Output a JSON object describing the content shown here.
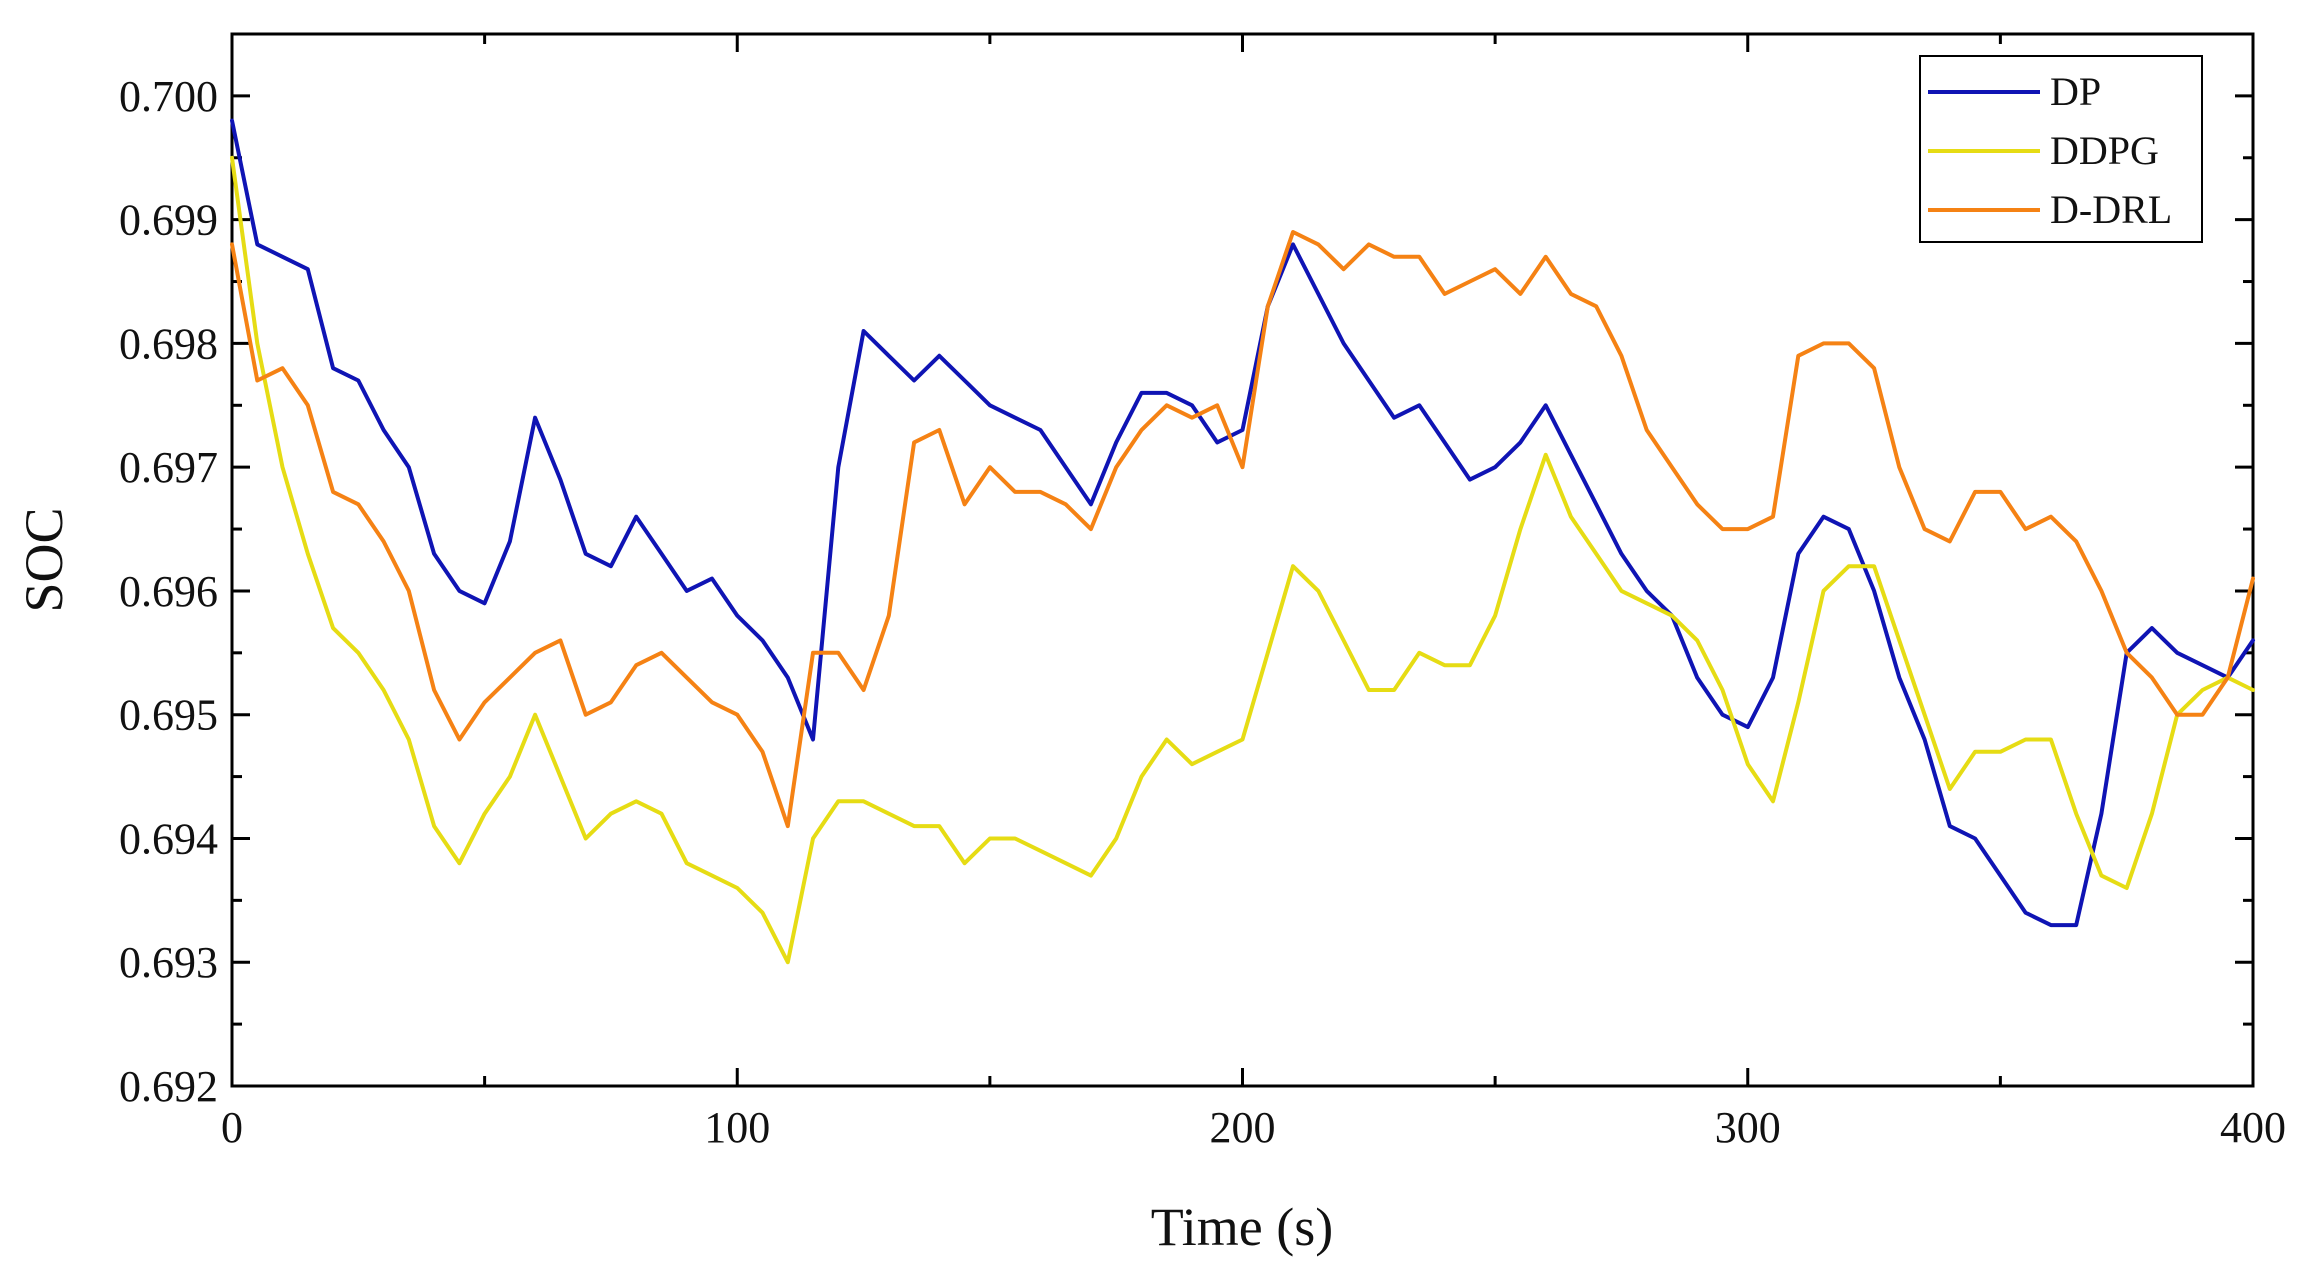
{
  "chart_data": {
    "type": "line",
    "title": "",
    "xlabel": "Time (s)",
    "ylabel": "SOC",
    "xlim": [
      0,
      400
    ],
    "ylim": [
      0.692,
      0.7005
    ],
    "xticks": [
      0,
      100,
      200,
      300,
      400
    ],
    "xtick_labels": [
      "0",
      "100",
      "200",
      "300",
      "400"
    ],
    "yticks": [
      0.692,
      0.693,
      0.694,
      0.695,
      0.696,
      0.697,
      0.698,
      0.699,
      0.7
    ],
    "ytick_labels": [
      "0.692",
      "0.693",
      "0.694",
      "0.695",
      "0.696",
      "0.697",
      "0.698",
      "0.699",
      "0.700"
    ],
    "grid": false,
    "legend_position": "top-right",
    "x": [
      0,
      5,
      10,
      15,
      20,
      25,
      30,
      35,
      40,
      45,
      50,
      55,
      60,
      65,
      70,
      75,
      80,
      85,
      90,
      95,
      100,
      105,
      110,
      115,
      120,
      125,
      130,
      135,
      140,
      145,
      150,
      155,
      160,
      165,
      170,
      175,
      180,
      185,
      190,
      195,
      200,
      205,
      210,
      215,
      220,
      225,
      230,
      235,
      240,
      245,
      250,
      255,
      260,
      265,
      270,
      275,
      280,
      285,
      290,
      295,
      300,
      305,
      310,
      315,
      320,
      325,
      330,
      335,
      340,
      345,
      350,
      355,
      360,
      365,
      370,
      375,
      380,
      385,
      390,
      395,
      400
    ],
    "series": [
      {
        "name": "DP",
        "color": "#0f14b4",
        "values": [
          0.6998,
          0.6988,
          0.6987,
          0.6986,
          0.6978,
          0.6977,
          0.6973,
          0.697,
          0.6963,
          0.696,
          0.6959,
          0.6964,
          0.6974,
          0.6969,
          0.6963,
          0.6962,
          0.6966,
          0.6963,
          0.696,
          0.6961,
          0.6958,
          0.6956,
          0.6953,
          0.6948,
          0.697,
          0.6981,
          0.6979,
          0.6977,
          0.6979,
          0.6977,
          0.6975,
          0.6974,
          0.6973,
          0.697,
          0.6967,
          0.6972,
          0.6976,
          0.6976,
          0.6975,
          0.6972,
          0.6973,
          0.6983,
          0.6988,
          0.6984,
          0.698,
          0.6977,
          0.6974,
          0.6975,
          0.6972,
          0.6969,
          0.697,
          0.6972,
          0.6975,
          0.6971,
          0.6967,
          0.6963,
          0.696,
          0.6958,
          0.6953,
          0.695,
          0.6949,
          0.6953,
          0.6963,
          0.6966,
          0.6965,
          0.696,
          0.6953,
          0.6948,
          0.6941,
          0.694,
          0.6937,
          0.6934,
          0.6933,
          0.6933,
          0.6942,
          0.6955,
          0.6957,
          0.6955,
          0.6954,
          0.6953,
          0.6956
        ]
      },
      {
        "name": "DDPG",
        "color": "#e6dc14",
        "values": [
          0.6995,
          0.698,
          0.697,
          0.6963,
          0.6957,
          0.6955,
          0.6952,
          0.6948,
          0.6941,
          0.6938,
          0.6942,
          0.6945,
          0.695,
          0.6945,
          0.694,
          0.6942,
          0.6943,
          0.6942,
          0.6938,
          0.6937,
          0.6936,
          0.6934,
          0.693,
          0.694,
          0.6943,
          0.6943,
          0.6942,
          0.6941,
          0.6941,
          0.6938,
          0.694,
          0.694,
          0.6939,
          0.6938,
          0.6937,
          0.694,
          0.6945,
          0.6948,
          0.6946,
          0.6947,
          0.6948,
          0.6955,
          0.6962,
          0.696,
          0.6956,
          0.6952,
          0.6952,
          0.6955,
          0.6954,
          0.6954,
          0.6958,
          0.6965,
          0.6971,
          0.6966,
          0.6963,
          0.696,
          0.6959,
          0.6958,
          0.6956,
          0.6952,
          0.6946,
          0.6943,
          0.6951,
          0.696,
          0.6962,
          0.6962,
          0.6956,
          0.695,
          0.6944,
          0.6947,
          0.6947,
          0.6948,
          0.6948,
          0.6942,
          0.6937,
          0.6936,
          0.6942,
          0.695,
          0.6952,
          0.6953,
          0.6952
        ]
      },
      {
        "name": "D-DRL",
        "color": "#f58214",
        "values": [
          0.6988,
          0.6977,
          0.6978,
          0.6975,
          0.6968,
          0.6967,
          0.6964,
          0.696,
          0.6952,
          0.6948,
          0.6951,
          0.6953,
          0.6955,
          0.6956,
          0.695,
          0.6951,
          0.6954,
          0.6955,
          0.6953,
          0.6951,
          0.695,
          0.6947,
          0.6941,
          0.6955,
          0.6955,
          0.6952,
          0.6958,
          0.6972,
          0.6973,
          0.6967,
          0.697,
          0.6968,
          0.6968,
          0.6967,
          0.6965,
          0.697,
          0.6973,
          0.6975,
          0.6974,
          0.6975,
          0.697,
          0.6983,
          0.6989,
          0.6988,
          0.6986,
          0.6988,
          0.6987,
          0.6987,
          0.6984,
          0.6985,
          0.6986,
          0.6984,
          0.6987,
          0.6984,
          0.6983,
          0.6979,
          0.6973,
          0.697,
          0.6967,
          0.6965,
          0.6965,
          0.6966,
          0.6979,
          0.698,
          0.698,
          0.6978,
          0.697,
          0.6965,
          0.6964,
          0.6968,
          0.6968,
          0.6965,
          0.6966,
          0.6964,
          0.696,
          0.6955,
          0.6953,
          0.695,
          0.695,
          0.6953,
          0.6961
        ]
      }
    ]
  }
}
